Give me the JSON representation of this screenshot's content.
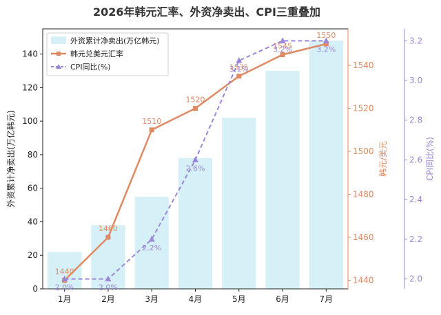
{
  "chart_data": {
    "type": "bar",
    "title": "2026年韩元汇率、外资净卖出、CPI三重叠加",
    "categories": [
      "1月",
      "2月",
      "3月",
      "4月",
      "5月",
      "6月",
      "7月"
    ],
    "bar_series": {
      "name": "外资累计净卖出(万亿韩元)",
      "values": [
        22,
        38,
        55,
        78,
        102,
        130,
        148
      ],
      "color": "#d6f0f7"
    },
    "fx_series": {
      "name": "韩元兑美元汇率",
      "values": [
        1440,
        1460,
        1510,
        1520,
        1535,
        1545,
        1550
      ],
      "labels": [
        "1440",
        "1460",
        "1510",
        "1520",
        "1535",
        "1545",
        "1550"
      ],
      "color": "#e08a63"
    },
    "cpi_series": {
      "name": "CPI同比(%)",
      "values": [
        2.0,
        2.0,
        2.2,
        2.6,
        3.1,
        3.2,
        3.2
      ],
      "labels": [
        "2.0%",
        "2.0%",
        "2.2%",
        "2.6%",
        "3.1%",
        "3.2%",
        "3.2%"
      ],
      "color": "#9b86d9"
    },
    "axes": {
      "left": {
        "label": "外资累计净卖出(万亿韩元)",
        "ylim": [
          0,
          155
        ],
        "ticks": [
          "0",
          "20",
          "40",
          "60",
          "80",
          "100",
          "120",
          "140"
        ]
      },
      "right1": {
        "label": "韩元/美元",
        "ylim": [
          1436,
          1557
        ],
        "ticks": [
          "1440",
          "1460",
          "1480",
          "1500",
          "1520",
          "1540"
        ]
      },
      "right2": {
        "label": "CPI同比(%)",
        "ylim": [
          1.95,
          3.26
        ],
        "ticks": [
          "2.0",
          "2.2",
          "2.4",
          "2.6",
          "2.8",
          "3.0",
          "3.2"
        ]
      }
    },
    "legend": "top-left",
    "grid": false
  }
}
